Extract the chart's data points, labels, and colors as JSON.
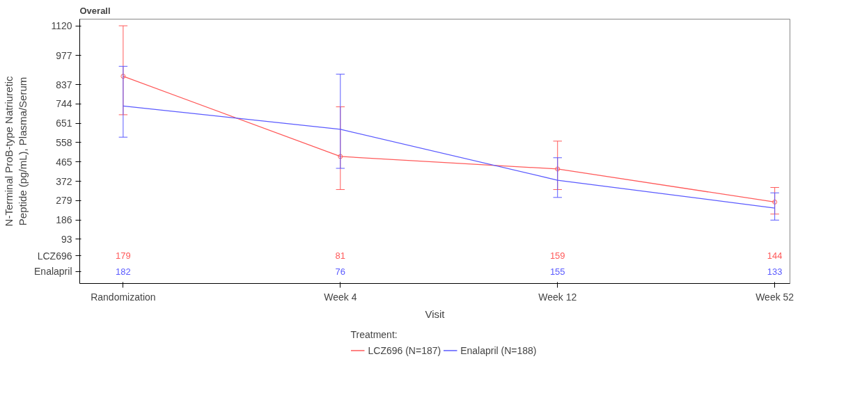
{
  "chart_data": {
    "type": "line",
    "title": "Overall",
    "xlabel": "Visit",
    "ylabel": "N-Terminal ProB-type Natriuretic\nPeptide (pg/mL), Plasma/Serum",
    "legend_title": "Treatment:",
    "categories": [
      "Randomization",
      "Week 4",
      "Week 12",
      "Week 52"
    ],
    "series": [
      {
        "name": "LCZ696 (N=187)",
        "color": "#ff5a5a",
        "marker": "circle",
        "values": [
          877,
          491,
          431,
          272
        ],
        "errors": [
          [
            692,
            1120
          ],
          [
            332,
            730
          ],
          [
            332,
            565
          ],
          [
            214,
            342
          ]
        ]
      },
      {
        "name": "Enalapril (N=188)",
        "color": "#5a5aff",
        "marker": "none",
        "values": [
          734,
          622,
          377,
          243
        ],
        "errors": [
          [
            584,
            925
          ],
          [
            434,
            887
          ],
          [
            294,
            485
          ],
          [
            185,
            316
          ]
        ]
      }
    ],
    "ylim": [
      -120,
      1152
    ],
    "yticks": [
      93,
      186,
      279,
      372,
      465,
      558,
      651,
      744,
      837,
      977,
      1120
    ],
    "grid": false,
    "legend": "bottom",
    "annotations": [
      "LCZ696",
      "Enalapril",
      "179",
      "81",
      "159",
      "144",
      "182",
      "76",
      "155",
      "133"
    ]
  }
}
